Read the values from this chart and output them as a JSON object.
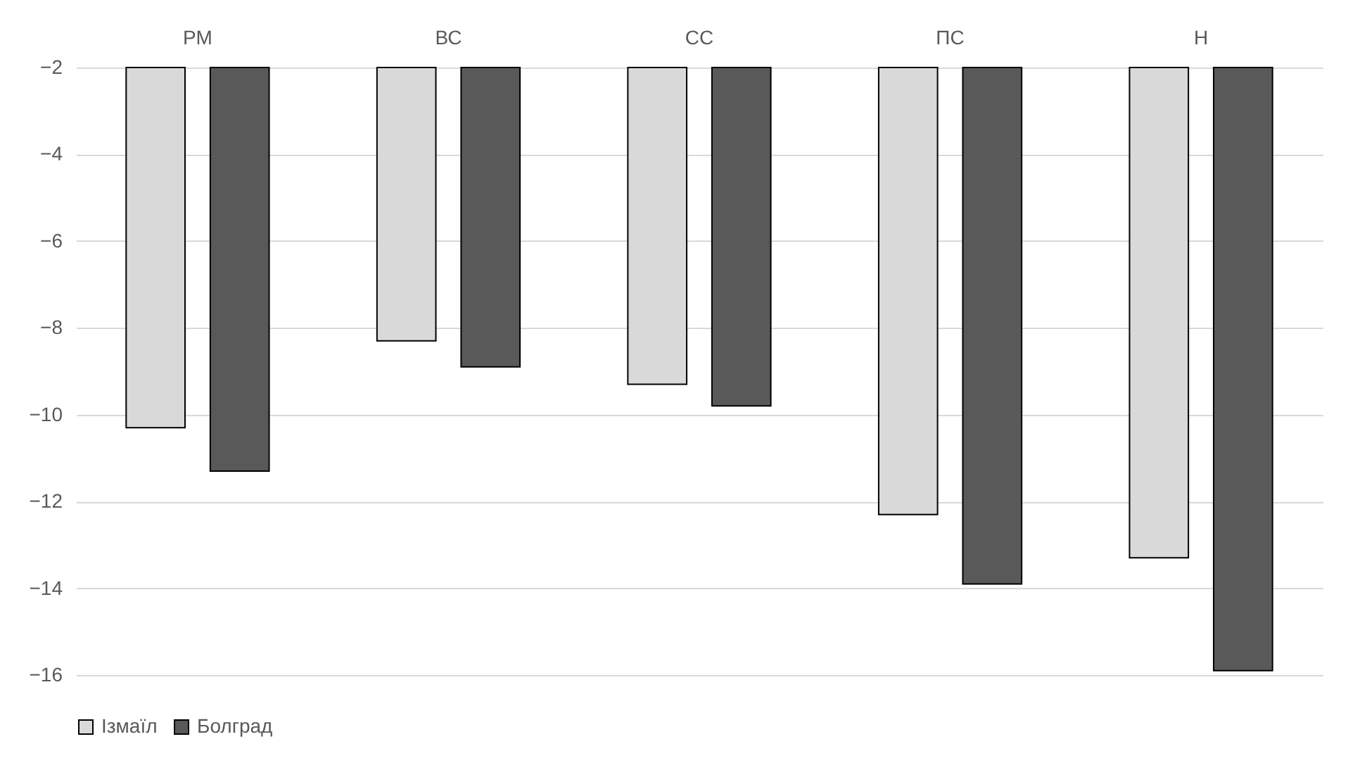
{
  "chart_data": {
    "type": "bar",
    "categories": [
      "РМ",
      "ВС",
      "СС",
      "ПС",
      "Н"
    ],
    "series": [
      {
        "name": "Ізмаїл",
        "color": "#d9d9d9",
        "values": [
          -10.3,
          -8.3,
          -9.3,
          -12.3,
          -13.3
        ]
      },
      {
        "name": "Болград",
        "color": "#595959",
        "values": [
          -11.3,
          -8.9,
          -9.8,
          -13.9,
          -15.9
        ]
      }
    ],
    "ylim": [
      -16,
      -2
    ],
    "yticks": [
      -2,
      -4,
      -6,
      -8,
      -10,
      -12,
      -14,
      -16
    ],
    "grid": "y",
    "legend": "bottom"
  }
}
